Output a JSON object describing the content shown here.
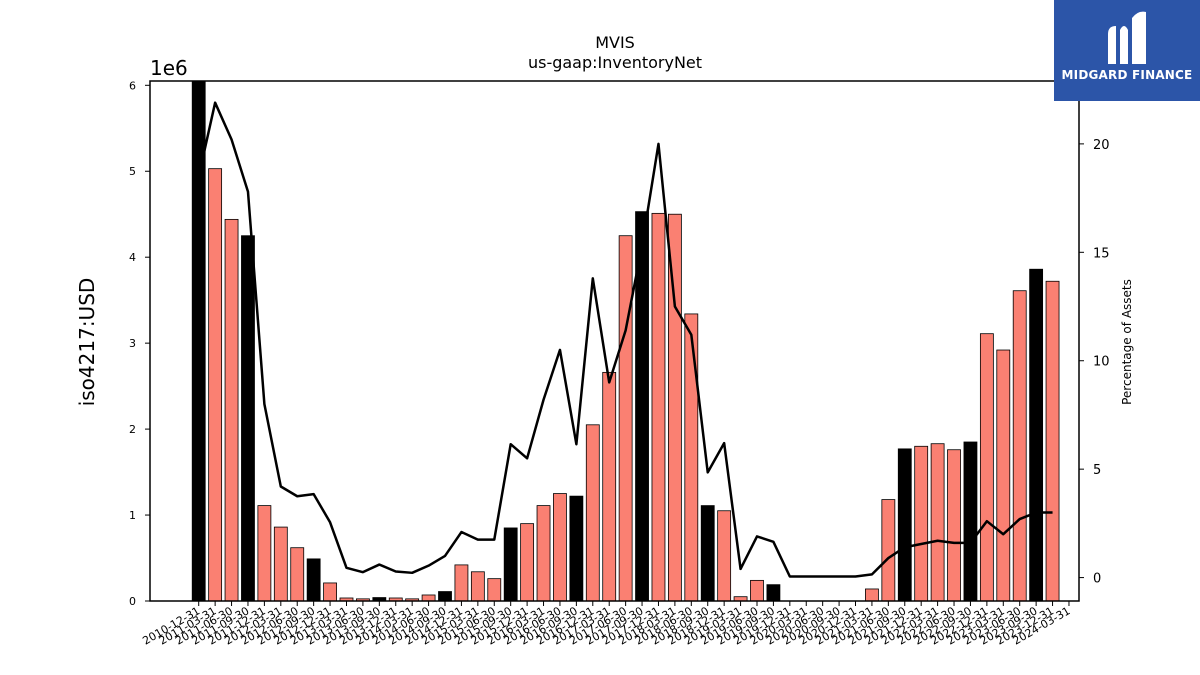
{
  "chart_data": {
    "type": "bar",
    "title": "MVIS",
    "subtitle": "us-gaap:InventoryNet",
    "ylabel": "iso4217:USD",
    "ylabel_right": "Percentage of Assets",
    "y_offset_text": "1e6",
    "ylim": [
      0,
      6050000
    ],
    "ylim_right": [
      -1.08,
      22.9
    ],
    "yticks": [
      0,
      1,
      2,
      3,
      4,
      5,
      6
    ],
    "yticks_right": [
      0,
      5,
      10,
      15,
      20
    ],
    "grid": false,
    "x_tick_rotation_deg": 30,
    "colors": {
      "bar_highlight": "#000000",
      "bar_normal": "#fa8072",
      "line": "#000000"
    },
    "categories": [
      "2010-12-31",
      "2011-03-31",
      "2011-06-30",
      "2011-09-30",
      "2011-12-31",
      "2012-03-31",
      "2012-06-30",
      "2012-09-30",
      "2012-12-31",
      "2013-03-31",
      "2013-06-30",
      "2013-09-30",
      "2013-12-31",
      "2014-03-31",
      "2014-06-30",
      "2014-09-30",
      "2014-12-31",
      "2015-03-31",
      "2015-06-30",
      "2015-09-30",
      "2015-12-31",
      "2016-03-31",
      "2016-06-30",
      "2016-09-30",
      "2016-12-31",
      "2017-03-31",
      "2017-06-30",
      "2017-09-30",
      "2017-12-31",
      "2018-03-31",
      "2018-06-30",
      "2018-09-30",
      "2018-12-31",
      "2019-03-31",
      "2019-06-30",
      "2019-09-30",
      "2019-12-31",
      "2020-03-31",
      "2020-06-30",
      "2020-09-30",
      "2020-12-31",
      "2021-03-31",
      "2021-06-30",
      "2021-09-30",
      "2021-12-31",
      "2022-03-31",
      "2022-06-30",
      "2022-09-30",
      "2022-12-31",
      "2023-03-31",
      "2023-06-30",
      "2023-09-30",
      "2023-12-31",
      "2024-03-31"
    ],
    "series": [
      {
        "type": "bar",
        "values": [
          6050000,
          5030000,
          4440000,
          4250000,
          1110000,
          860000,
          620000,
          490000,
          210000,
          35000,
          25000,
          40000,
          35000,
          25000,
          70000,
          110000,
          420000,
          340000,
          260000,
          850000,
          900000,
          1110000,
          1250000,
          1220000,
          2050000,
          2660000,
          4250000,
          4530000,
          4510000,
          4500000,
          3340000,
          1110000,
          1050000,
          50000,
          240000,
          190000,
          0,
          0,
          0,
          0,
          0,
          140000,
          1180000,
          1770000,
          1800000,
          1830000,
          1760000,
          1850000,
          3110000,
          2920000,
          3610000,
          3860000,
          3720000,
          0
        ],
        "highlight": [
          true,
          false,
          false,
          true,
          false,
          false,
          false,
          true,
          false,
          false,
          false,
          true,
          false,
          false,
          false,
          true,
          false,
          false,
          false,
          true,
          false,
          false,
          false,
          true,
          false,
          false,
          false,
          true,
          false,
          false,
          false,
          true,
          false,
          false,
          false,
          true,
          false,
          false,
          false,
          true,
          false,
          false,
          false,
          true,
          false,
          false,
          false,
          true,
          false,
          false,
          false,
          true,
          false,
          false
        ]
      },
      {
        "type": "line",
        "axis": "right",
        "values": [
          18.5,
          21.9,
          20.2,
          17.8,
          8.0,
          4.2,
          3.75,
          3.85,
          2.55,
          0.45,
          0.25,
          0.6,
          0.28,
          0.22,
          0.55,
          1.0,
          2.1,
          1.75,
          1.75,
          6.15,
          5.5,
          8.2,
          10.5,
          6.15,
          13.8,
          9.0,
          11.4,
          15.3,
          20.0,
          12.5,
          11.2,
          4.85,
          6.2,
          0.4,
          1.9,
          1.65,
          0.05,
          0.05,
          0.05,
          0.05,
          0.05,
          0.15,
          0.9,
          1.4,
          1.55,
          1.7,
          1.6,
          1.6,
          2.6,
          2.0,
          2.7,
          3.0,
          3.0,
          null
        ]
      }
    ]
  },
  "logo": {
    "text": "MIDGARD FINANCE"
  }
}
